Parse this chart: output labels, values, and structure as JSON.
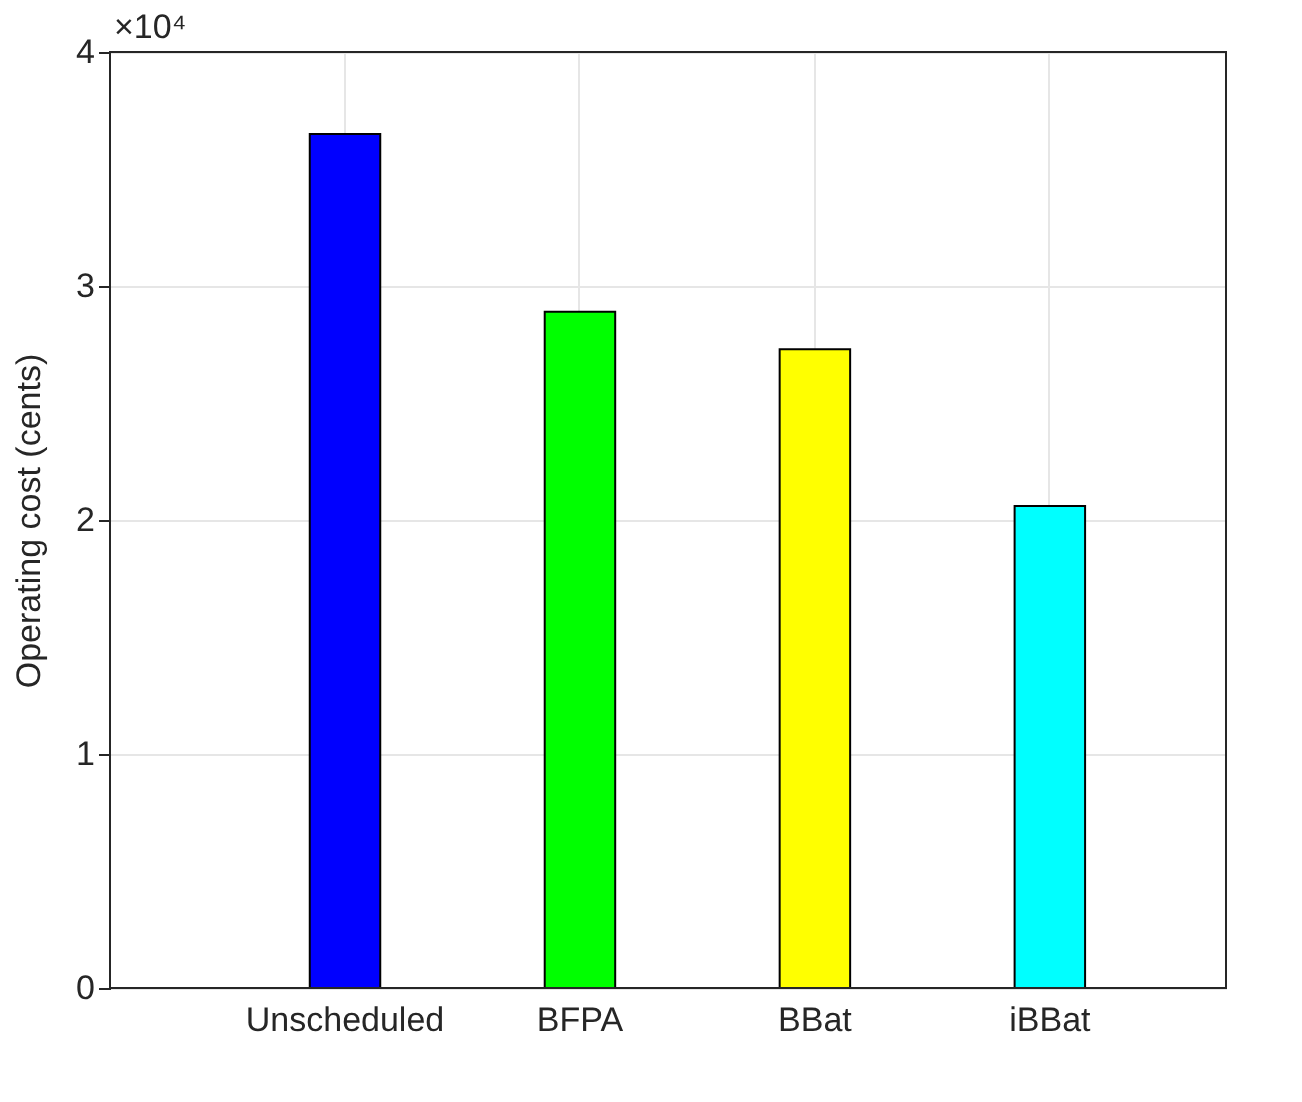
{
  "chart_data": {
    "type": "bar",
    "ylabel": "Operating cost  (cents)",
    "categories": [
      "Unscheduled",
      "BFPA",
      "BBat",
      "iBBat"
    ],
    "values": [
      3.65,
      2.89,
      2.73,
      2.06
    ],
    "colors": [
      "#0000ff",
      "#00ff00",
      "#ffff00",
      "#00ffff"
    ],
    "ylim": [
      0,
      4
    ],
    "yticks": [
      0,
      1,
      2,
      3,
      4
    ],
    "annotations": [
      "×10⁴"
    ],
    "grid": true
  }
}
